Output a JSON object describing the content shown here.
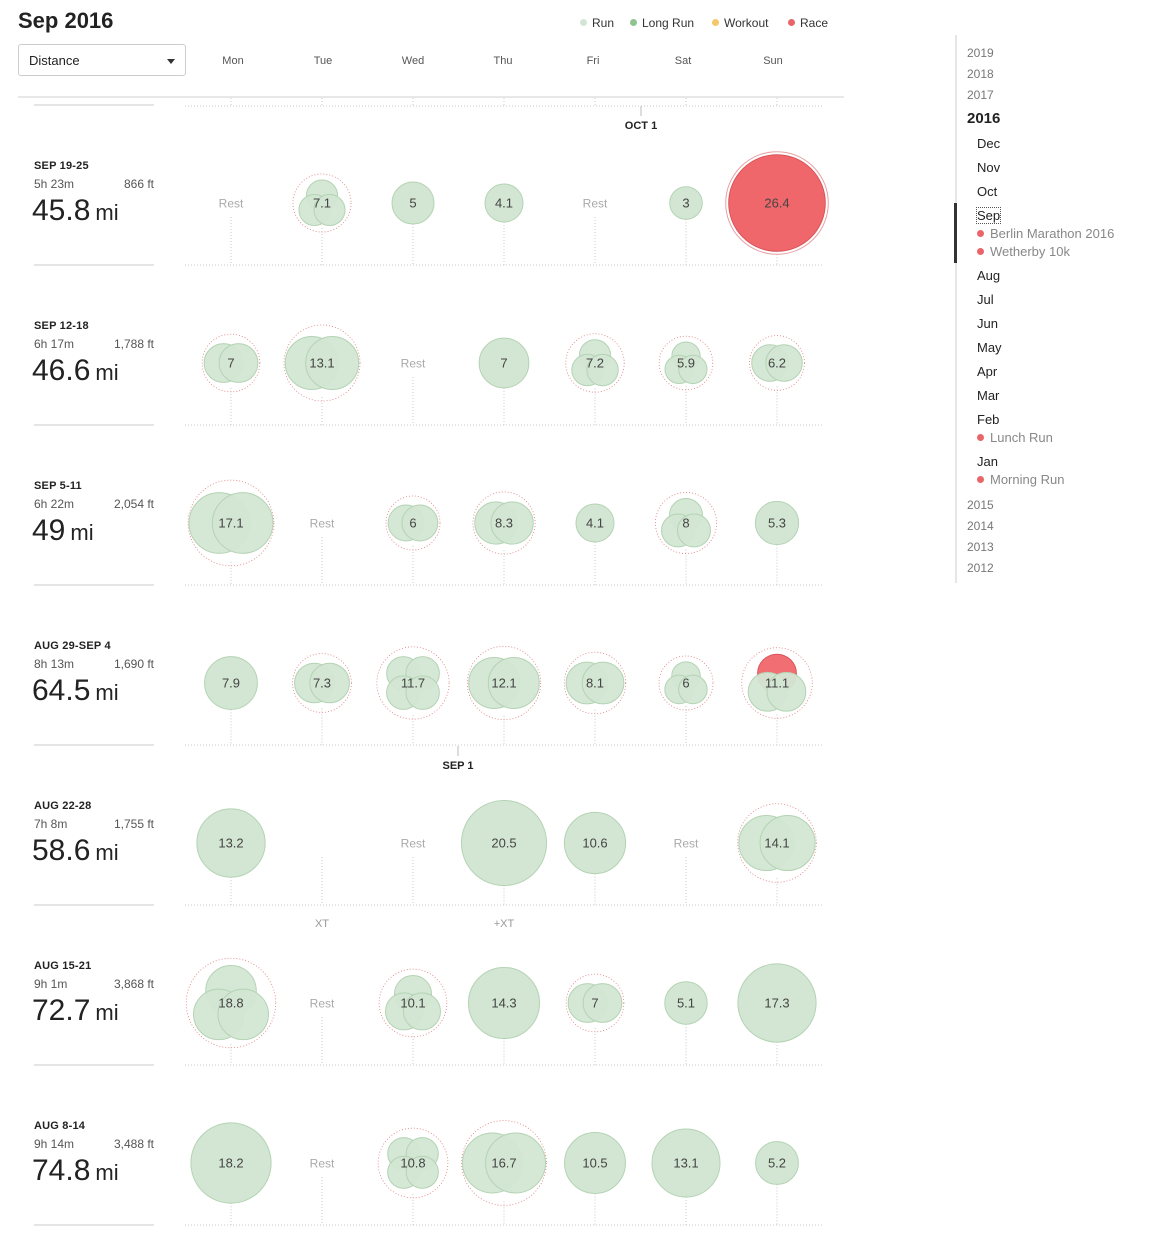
{
  "header": {
    "title": "Sep 2016",
    "metric_select": "Distance",
    "legend": [
      {
        "label": "Run",
        "color": "#d3e6d3"
      },
      {
        "label": "Long Run",
        "color": "#8fc48f"
      },
      {
        "label": "Workout",
        "color": "#f5c86a"
      },
      {
        "label": "Race",
        "color": "#e8656a"
      }
    ],
    "days": [
      "Mon",
      "Tue",
      "Wed",
      "Thu",
      "Fri",
      "Sat",
      "Sun"
    ]
  },
  "colors": {
    "run": "#d3e6d3",
    "race": "#f0676b",
    "run_stroke": "#b4d3b4"
  },
  "month_markers": [
    "OCT 1",
    "SEP 1"
  ],
  "weeks": [
    {
      "label": "SEP 19-25",
      "time": "5h 23m",
      "elev": "866 ft",
      "dist": "45.8",
      "unit": "mi",
      "days": [
        {
          "value": "Rest",
          "miles": 0
        },
        {
          "value": "7.1",
          "miles": 7.1,
          "parts": 3
        },
        {
          "value": "5",
          "miles": 5,
          "parts": 1
        },
        {
          "value": "4.1",
          "miles": 4.1,
          "parts": 1
        },
        {
          "value": "Rest",
          "miles": 0
        },
        {
          "value": "3",
          "miles": 3,
          "parts": 1
        },
        {
          "value": "26.4",
          "miles": 26.4,
          "parts": 1,
          "race": true
        }
      ]
    },
    {
      "label": "SEP 12-18",
      "time": "6h 17m",
      "elev": "1,788 ft",
      "dist": "46.6",
      "unit": "mi",
      "days": [
        {
          "value": "7",
          "miles": 7,
          "parts": 2
        },
        {
          "value": "13.1",
          "miles": 13.1,
          "parts": 2
        },
        {
          "value": "Rest",
          "miles": 0
        },
        {
          "value": "7",
          "miles": 7,
          "parts": 1
        },
        {
          "value": "7.2",
          "miles": 7.2,
          "parts": 3
        },
        {
          "value": "5.9",
          "miles": 5.9,
          "parts": 3
        },
        {
          "value": "6.2",
          "miles": 6.2,
          "parts": 2
        }
      ]
    },
    {
      "label": "SEP 5-11",
      "time": "6h 22m",
      "elev": "2,054 ft",
      "dist": "49",
      "unit": "mi",
      "days": [
        {
          "value": "17.1",
          "miles": 17.1,
          "parts": 2
        },
        {
          "value": "Rest",
          "miles": 0
        },
        {
          "value": "6",
          "miles": 6,
          "parts": 2
        },
        {
          "value": "8.3",
          "miles": 8.3,
          "parts": 2
        },
        {
          "value": "4.1",
          "miles": 4.1,
          "parts": 1
        },
        {
          "value": "8",
          "miles": 8,
          "parts": 3
        },
        {
          "value": "5.3",
          "miles": 5.3,
          "parts": 1
        }
      ]
    },
    {
      "label": "AUG 29-SEP 4",
      "time": "8h 13m",
      "elev": "1,690 ft",
      "dist": "64.5",
      "unit": "mi",
      "days": [
        {
          "value": "7.9",
          "miles": 7.9,
          "parts": 1
        },
        {
          "value": "7.3",
          "miles": 7.3,
          "parts": 2
        },
        {
          "value": "11.7",
          "miles": 11.7,
          "parts": 4
        },
        {
          "value": "12.1",
          "miles": 12.1,
          "parts": 2
        },
        {
          "value": "8.1",
          "miles": 8.1,
          "parts": 2
        },
        {
          "value": "6",
          "miles": 6,
          "parts": 3
        },
        {
          "value": "11.1",
          "miles": 11.1,
          "parts": 3,
          "race": true
        }
      ]
    },
    {
      "label": "AUG 22-28",
      "time": "7h 8m",
      "elev": "1,755 ft",
      "dist": "58.6",
      "unit": "mi",
      "days": [
        {
          "value": "13.2",
          "miles": 13.2,
          "parts": 1
        },
        {
          "value": "",
          "miles": 0,
          "note": "XT"
        },
        {
          "value": "Rest",
          "miles": 0
        },
        {
          "value": "20.5",
          "miles": 20.5,
          "parts": 1,
          "note": "+XT"
        },
        {
          "value": "10.6",
          "miles": 10.6,
          "parts": 1
        },
        {
          "value": "Rest",
          "miles": 0
        },
        {
          "value": "14.1",
          "miles": 14.1,
          "parts": 2
        }
      ]
    },
    {
      "label": "AUG 15-21",
      "time": "9h 1m",
      "elev": "3,868 ft",
      "dist": "72.7",
      "unit": "mi",
      "days": [
        {
          "value": "18.8",
          "miles": 18.8,
          "parts": 3
        },
        {
          "value": "Rest",
          "miles": 0
        },
        {
          "value": "10.1",
          "miles": 10.1,
          "parts": 3
        },
        {
          "value": "14.3",
          "miles": 14.3,
          "parts": 1
        },
        {
          "value": "7",
          "miles": 7,
          "parts": 2
        },
        {
          "value": "5.1",
          "miles": 5.1,
          "parts": 1
        },
        {
          "value": "17.3",
          "miles": 17.3,
          "parts": 1
        }
      ]
    },
    {
      "label": "AUG 8-14",
      "time": "9h 14m",
      "elev": "3,488 ft",
      "dist": "74.8",
      "unit": "mi",
      "days": [
        {
          "value": "18.2",
          "miles": 18.2,
          "parts": 1
        },
        {
          "value": "Rest",
          "miles": 0
        },
        {
          "value": "10.8",
          "miles": 10.8,
          "parts": 4
        },
        {
          "value": "16.7",
          "miles": 16.7,
          "parts": 2
        },
        {
          "value": "10.5",
          "miles": 10.5,
          "parts": 1
        },
        {
          "value": "13.1",
          "miles": 13.1,
          "parts": 1
        },
        {
          "value": "5.2",
          "miles": 5.2,
          "parts": 1
        }
      ]
    }
  ],
  "sidebar": {
    "years_before": [
      "2019",
      "2018",
      "2017"
    ],
    "current_year": "2016",
    "months": [
      {
        "label": "Dec",
        "events": []
      },
      {
        "label": "Nov",
        "events": []
      },
      {
        "label": "Oct",
        "events": []
      },
      {
        "label": "Sep",
        "selected": true,
        "events": [
          "Berlin Marathon 2016",
          "Wetherby 10k"
        ]
      },
      {
        "label": "Aug",
        "events": []
      },
      {
        "label": "Jul",
        "events": []
      },
      {
        "label": "Jun",
        "events": []
      },
      {
        "label": "May",
        "events": []
      },
      {
        "label": "Apr",
        "events": []
      },
      {
        "label": "Mar",
        "events": []
      },
      {
        "label": "Feb",
        "events": [
          "Lunch Run"
        ]
      },
      {
        "label": "Jan",
        "events": [
          "Morning Run"
        ]
      }
    ],
    "years_after": [
      "2015",
      "2014",
      "2013",
      "2012"
    ]
  }
}
